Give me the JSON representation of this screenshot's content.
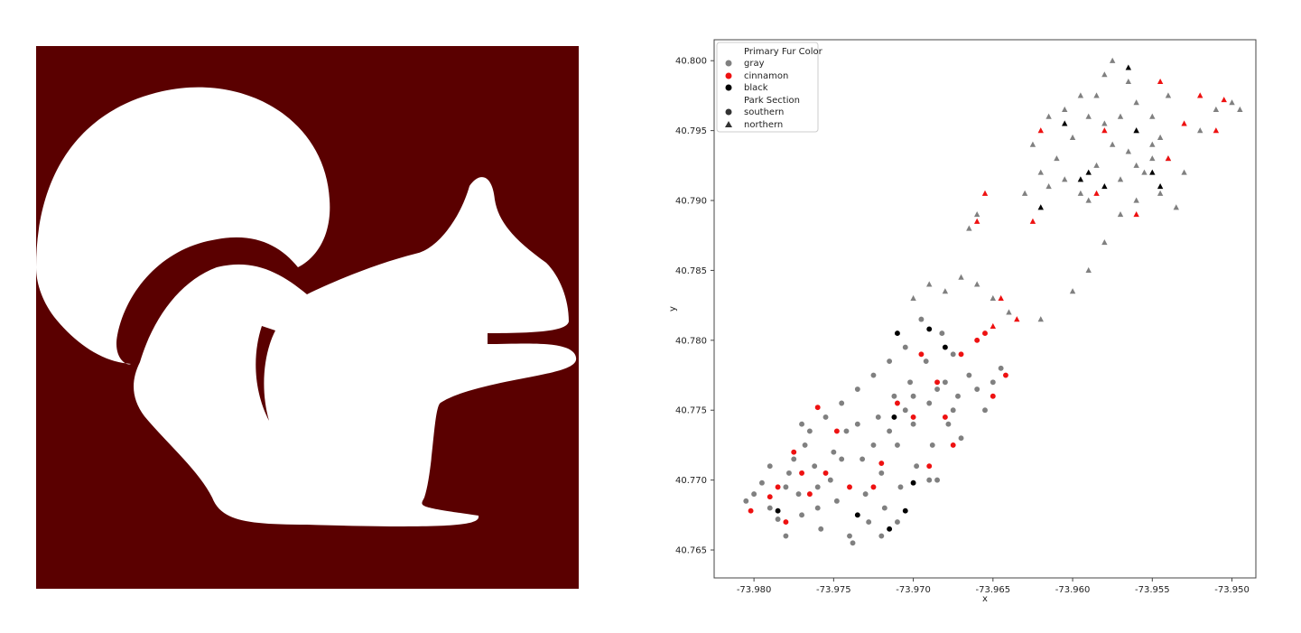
{
  "colors": {
    "background_panel": "#5a0000",
    "silhouette": "#ffffff",
    "gray": "#808080",
    "cinnamon": "#ee1111",
    "black": "#000000"
  },
  "chart_data": [
    {
      "type": "image",
      "image_name": "squirrel-silhouette-icon"
    },
    {
      "type": "scatter",
      "xlabel": "x",
      "ylabel": "y",
      "xlim": [
        -73.9825,
        -73.9485
      ],
      "ylim": [
        40.763,
        40.8015
      ],
      "xticks": [
        "-73.980",
        "-73.975",
        "-73.970",
        "-73.965",
        "-73.960",
        "-73.955",
        "-73.950"
      ],
      "xtick_values": [
        -73.98,
        -73.975,
        -73.97,
        -73.965,
        -73.96,
        -73.955,
        -73.95
      ],
      "yticks": [
        "40.765",
        "40.770",
        "40.775",
        "40.780",
        "40.785",
        "40.790",
        "40.795",
        "40.800"
      ],
      "ytick_values": [
        40.765,
        40.77,
        40.775,
        40.78,
        40.785,
        40.79,
        40.795,
        40.8
      ],
      "grid": false,
      "legend_position": "upper-left",
      "legend": {
        "hue_title": "Primary Fur Color",
        "hue_items": [
          {
            "label": "gray",
            "color": "#808080"
          },
          {
            "label": "cinnamon",
            "color": "#ee1111"
          },
          {
            "label": "black",
            "color": "#000000"
          }
        ],
        "style_title": "Park Section",
        "style_items": [
          {
            "label": "southern",
            "marker": "circle"
          },
          {
            "label": "northern",
            "marker": "triangle"
          }
        ]
      },
      "series": [
        {
          "hue": "gray",
          "style": "southern",
          "points": [
            [
              -73.9805,
              40.7685
            ],
            [
              -73.98,
              40.769
            ],
            [
              -73.9795,
              40.7698
            ],
            [
              -73.979,
              40.768
            ],
            [
              -73.9785,
              40.7672
            ],
            [
              -73.978,
              40.7695
            ],
            [
              -73.9778,
              40.7705
            ],
            [
              -73.9775,
              40.7715
            ],
            [
              -73.9772,
              40.769
            ],
            [
              -73.977,
              40.7675
            ],
            [
              -73.9768,
              40.7725
            ],
            [
              -73.9765,
              40.7735
            ],
            [
              -73.9762,
              40.771
            ],
            [
              -73.976,
              40.768
            ],
            [
              -73.9758,
              40.7665
            ],
            [
              -73.9755,
              40.7745
            ],
            [
              -73.9752,
              40.77
            ],
            [
              -73.975,
              40.772
            ],
            [
              -73.9748,
              40.7685
            ],
            [
              -73.9745,
              40.7755
            ],
            [
              -73.9742,
              40.7735
            ],
            [
              -73.974,
              40.766
            ],
            [
              -73.9738,
              40.7655
            ],
            [
              -73.9735,
              40.7765
            ],
            [
              -73.9732,
              40.7715
            ],
            [
              -73.973,
              40.769
            ],
            [
              -73.9728,
              40.767
            ],
            [
              -73.9725,
              40.7775
            ],
            [
              -73.9722,
              40.7745
            ],
            [
              -73.972,
              40.7705
            ],
            [
              -73.9718,
              40.768
            ],
            [
              -73.9715,
              40.7785
            ],
            [
              -73.9712,
              40.776
            ],
            [
              -73.971,
              40.7725
            ],
            [
              -73.9708,
              40.7695
            ],
            [
              -73.9705,
              40.7795
            ],
            [
              -73.9702,
              40.777
            ],
            [
              -73.97,
              40.774
            ],
            [
              -73.9698,
              40.771
            ],
            [
              -73.9695,
              40.7815
            ],
            [
              -73.9692,
              40.7785
            ],
            [
              -73.969,
              40.7755
            ],
            [
              -73.9688,
              40.7725
            ],
            [
              -73.9685,
              40.77
            ],
            [
              -73.9682,
              40.7805
            ],
            [
              -73.968,
              40.777
            ],
            [
              -73.9678,
              40.774
            ],
            [
              -73.9675,
              40.779
            ],
            [
              -73.9672,
              40.776
            ],
            [
              -73.967,
              40.773
            ],
            [
              -73.9665,
              40.7775
            ],
            [
              -73.966,
              40.7765
            ],
            [
              -73.9655,
              40.775
            ],
            [
              -73.965,
              40.777
            ],
            [
              -73.9645,
              40.778
            ],
            [
              -73.9725,
              40.7725
            ],
            [
              -73.97,
              40.776
            ],
            [
              -73.969,
              40.77
            ],
            [
              -73.976,
              40.7695
            ],
            [
              -73.9745,
              40.7715
            ],
            [
              -73.9735,
              40.774
            ],
            [
              -73.9715,
              40.7735
            ],
            [
              -73.9705,
              40.775
            ],
            [
              -73.9685,
              40.7765
            ],
            [
              -73.9675,
              40.775
            ],
            [
              -73.979,
              40.771
            ],
            [
              -73.977,
              40.774
            ],
            [
              -73.978,
              40.766
            ],
            [
              -73.971,
              40.767
            ],
            [
              -73.972,
              40.766
            ]
          ]
        },
        {
          "hue": "cinnamon",
          "style": "southern",
          "points": [
            [
              -73.9802,
              40.7678
            ],
            [
              -73.979,
              40.7688
            ],
            [
              -73.978,
              40.767
            ],
            [
              -73.9775,
              40.772
            ],
            [
              -73.9765,
              40.769
            ],
            [
              -73.976,
              40.7752
            ],
            [
              -73.9755,
              40.7705
            ],
            [
              -73.9748,
              40.7735
            ],
            [
              -73.974,
              40.7695
            ],
            [
              -73.972,
              40.7712
            ],
            [
              -73.97,
              40.7745
            ],
            [
              -73.9695,
              40.779
            ],
            [
              -73.9685,
              40.777
            ],
            [
              -73.968,
              40.7745
            ],
            [
              -73.9675,
              40.7725
            ],
            [
              -73.967,
              40.779
            ],
            [
              -73.966,
              40.78
            ],
            [
              -73.9655,
              40.7805
            ],
            [
              -73.965,
              40.776
            ],
            [
              -73.9642,
              40.7775
            ],
            [
              -73.969,
              40.771
            ],
            [
              -73.9785,
              40.7695
            ],
            [
              -73.977,
              40.7705
            ],
            [
              -73.9725,
              40.7695
            ],
            [
              -73.971,
              40.7755
            ]
          ]
        },
        {
          "hue": "black",
          "style": "southern",
          "points": [
            [
              -73.9785,
              40.7678
            ],
            [
              -73.9735,
              40.7675
            ],
            [
              -73.9715,
              40.7665
            ],
            [
              -73.9705,
              40.7678
            ],
            [
              -73.97,
              40.7698
            ],
            [
              -73.9712,
              40.7745
            ],
            [
              -73.971,
              40.7805
            ],
            [
              -73.969,
              40.7808
            ],
            [
              -73.968,
              40.7795
            ]
          ]
        },
        {
          "hue": "gray",
          "style": "northern",
          "points": [
            [
              -73.97,
              40.783
            ],
            [
              -73.969,
              40.784
            ],
            [
              -73.968,
              40.7835
            ],
            [
              -73.967,
              40.7845
            ],
            [
              -73.966,
              40.784
            ],
            [
              -73.965,
              40.783
            ],
            [
              -73.964,
              40.782
            ],
            [
              -73.9665,
              40.788
            ],
            [
              -73.966,
              40.789
            ],
            [
              -73.962,
              40.7815
            ],
            [
              -73.96,
              40.7835
            ],
            [
              -73.959,
              40.785
            ],
            [
              -73.958,
              40.787
            ],
            [
              -73.957,
              40.789
            ],
            [
              -73.956,
              40.79
            ],
            [
              -73.962,
              40.792
            ],
            [
              -73.961,
              40.793
            ],
            [
              -73.96,
              40.7945
            ],
            [
              -73.959,
              40.796
            ],
            [
              -73.9585,
              40.7975
            ],
            [
              -73.958,
              40.799
            ],
            [
              -73.9575,
              40.8
            ],
            [
              -73.9565,
              40.7985
            ],
            [
              -73.956,
              40.797
            ],
            [
              -73.955,
              40.796
            ],
            [
              -73.9545,
              40.7945
            ],
            [
              -73.954,
              40.793
            ],
            [
              -73.953,
              40.792
            ],
            [
              -73.952,
              40.795
            ],
            [
              -73.951,
              40.7965
            ],
            [
              -73.95,
              40.797
            ],
            [
              -73.9495,
              40.7965
            ],
            [
              -73.963,
              40.7905
            ],
            [
              -73.9615,
              40.791
            ],
            [
              -73.9605,
              40.7915
            ],
            [
              -73.9595,
              40.7905
            ],
            [
              -73.9585,
              40.7925
            ],
            [
              -73.9575,
              40.794
            ],
            [
              -73.9565,
              40.7935
            ],
            [
              -73.9555,
              40.792
            ],
            [
              -73.9545,
              40.7905
            ],
            [
              -73.9535,
              40.7895
            ],
            [
              -73.9615,
              40.796
            ],
            [
              -73.9605,
              40.7965
            ],
            [
              -73.9595,
              40.7975
            ],
            [
              -73.958,
              40.7955
            ],
            [
              -73.957,
              40.796
            ],
            [
              -73.956,
              40.795
            ],
            [
              -73.955,
              40.794
            ],
            [
              -73.954,
              40.7975
            ],
            [
              -73.959,
              40.79
            ],
            [
              -73.957,
              40.7915
            ],
            [
              -73.956,
              40.7925
            ],
            [
              -73.955,
              40.793
            ],
            [
              -73.9625,
              40.794
            ]
          ]
        },
        {
          "hue": "cinnamon",
          "style": "northern",
          "points": [
            [
              -73.966,
              40.7885
            ],
            [
              -73.965,
              40.781
            ],
            [
              -73.9645,
              40.783
            ],
            [
              -73.9635,
              40.7815
            ],
            [
              -73.9625,
              40.7885
            ],
            [
              -73.962,
              40.795
            ],
            [
              -73.958,
              40.795
            ],
            [
              -73.956,
              40.789
            ],
            [
              -73.9545,
              40.7985
            ],
            [
              -73.953,
              40.7955
            ],
            [
              -73.952,
              40.7975
            ],
            [
              -73.951,
              40.795
            ],
            [
              -73.9505,
              40.7972
            ],
            [
              -73.9655,
              40.7905
            ],
            [
              -73.954,
              40.793
            ],
            [
              -73.9585,
              40.7905
            ]
          ]
        },
        {
          "hue": "black",
          "style": "northern",
          "points": [
            [
              -73.9595,
              40.7915
            ],
            [
              -73.959,
              40.792
            ],
            [
              -73.958,
              40.791
            ],
            [
              -73.9565,
              40.7995
            ],
            [
              -73.956,
              40.795
            ],
            [
              -73.955,
              40.792
            ],
            [
              -73.9545,
              40.791
            ],
            [
              -73.962,
              40.7895
            ],
            [
              -73.9605,
              40.7955
            ]
          ]
        }
      ]
    }
  ]
}
